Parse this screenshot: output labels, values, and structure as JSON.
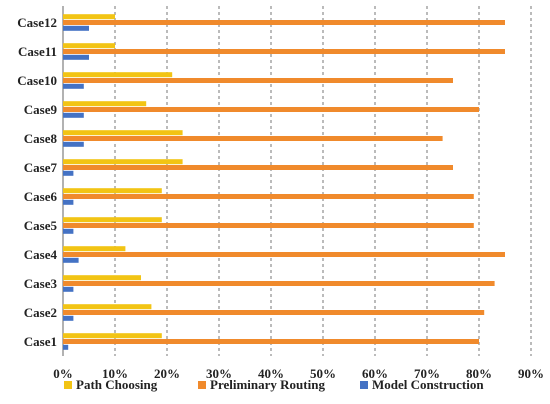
{
  "chart_data": {
    "type": "bar",
    "orientation": "horizontal",
    "title": "",
    "xlabel": "",
    "ylabel": "",
    "categories": [
      "Case1",
      "Case2",
      "Case3",
      "Case4",
      "Case5",
      "Case6",
      "Case7",
      "Case8",
      "Case9",
      "Case10",
      "Case11",
      "Case12"
    ],
    "series": [
      {
        "name": "Path Choosing",
        "color": "#F2C414",
        "values": [
          19,
          17,
          15,
          12,
          19,
          19,
          23,
          23,
          16,
          21,
          10,
          10
        ]
      },
      {
        "name": "Preliminary Routing",
        "color": "#F08A2C",
        "values": [
          80,
          81,
          83,
          85,
          79,
          79,
          75,
          73,
          80,
          75,
          85,
          85
        ]
      },
      {
        "name": "Model Construction",
        "color": "#4472C4",
        "values": [
          1,
          2,
          2,
          3,
          2,
          2,
          2,
          4,
          4,
          4,
          5,
          5
        ]
      }
    ],
    "xlim": [
      0,
      90
    ],
    "xticks": [
      "0%",
      "10%",
      "20%",
      "30%",
      "40%",
      "50%",
      "60%",
      "70%",
      "80%",
      "90%"
    ],
    "grid": true,
    "legend_position": "bottom"
  }
}
